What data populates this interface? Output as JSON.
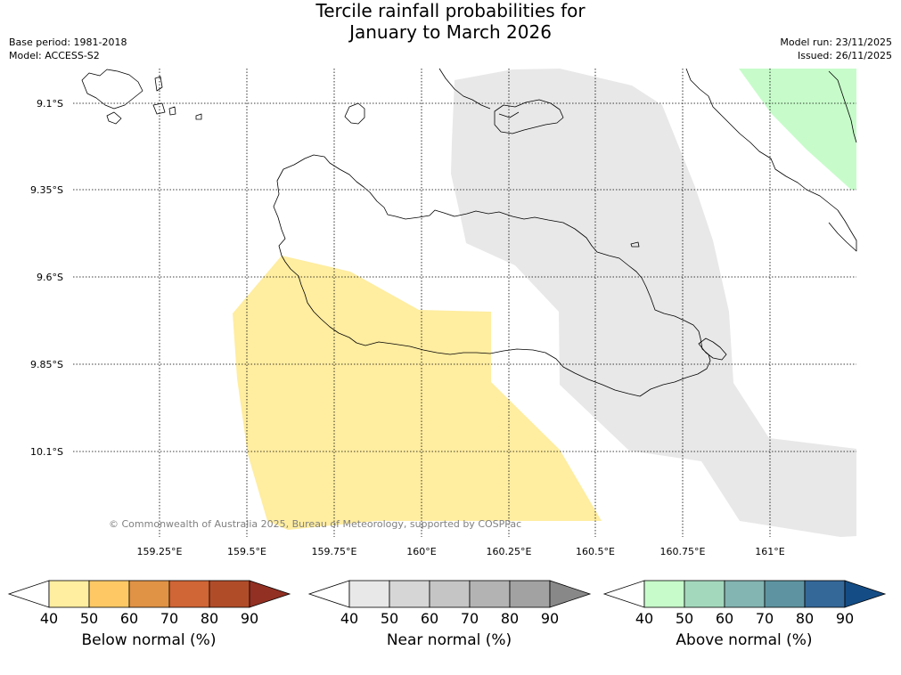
{
  "title": {
    "line1": "Tercile rainfall probabilities for",
    "line2": "January to March 2026"
  },
  "meta": {
    "base_period": "Base period: 1981-2018",
    "model": "Model: ACCESS-S2",
    "model_run": "Model run: 23/11/2025",
    "issued": "Issued: 26/11/2025"
  },
  "map": {
    "lat_labels": [
      "9.1°S",
      "9.35°S",
      "9.6°S",
      "9.85°S",
      "10.1°S"
    ],
    "lon_labels": [
      "159.25°E",
      "159.5°E",
      "159.75°E",
      "160°E",
      "160.25°E",
      "160.5°E",
      "160.75°E",
      "161°E"
    ],
    "copyright": "© Commonwealth of Australia 2025, Bureau of Meteorology, supported by COSPPac",
    "regions": [
      {
        "category": "below-normal",
        "probability_band": "40-50",
        "color": "#ffeda0"
      },
      {
        "category": "near-normal",
        "probability_band": "40-50",
        "color": "#e8e8e8"
      },
      {
        "category": "above-normal",
        "probability_band": "40-50",
        "color": "#c7fcca"
      }
    ]
  },
  "colorbars": [
    {
      "label": "Below normal (%)",
      "ticks": [
        "40",
        "50",
        "60",
        "70",
        "80",
        "90"
      ],
      "colors": [
        "#ffffff",
        "#ffeda0",
        "#fec965",
        "#e09245",
        "#d06535",
        "#b14c29",
        "#923023"
      ]
    },
    {
      "label": "Near normal (%)",
      "ticks": [
        "40",
        "50",
        "60",
        "70",
        "80",
        "90"
      ],
      "colors": [
        "#ffffff",
        "#e8e8e8",
        "#d6d6d6",
        "#c5c5c5",
        "#b3b3b3",
        "#a2a2a2",
        "#888888"
      ]
    },
    {
      "label": "Above normal (%)",
      "ticks": [
        "40",
        "50",
        "60",
        "70",
        "80",
        "90"
      ],
      "colors": [
        "#ffffff",
        "#c7fcca",
        "#a4d8bd",
        "#83b5b2",
        "#5e94a1",
        "#346899",
        "#144d86"
      ]
    }
  ]
}
